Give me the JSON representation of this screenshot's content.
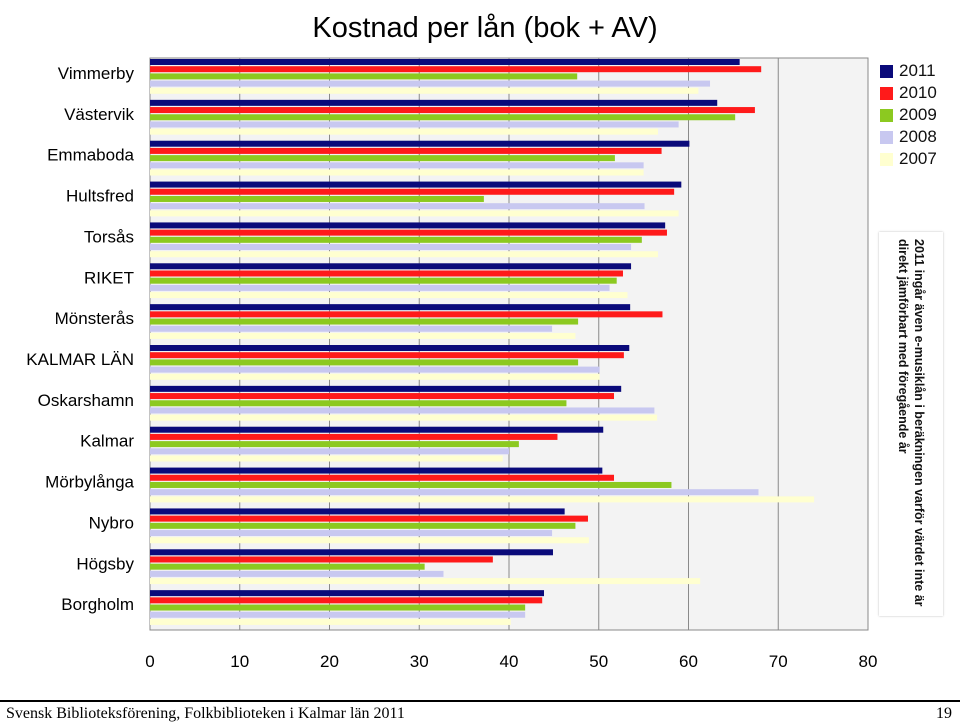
{
  "chart_data": {
    "type": "bar",
    "orientation": "horizontal",
    "title": "Kostnad per lån (bok + AV)",
    "categories": [
      "Vimmerby",
      "Västervik",
      "Emmaboda",
      "Hultsfred",
      "Torsås",
      "RIKET",
      "Mönsterås",
      "KALMAR LÄN",
      "Oskarshamn",
      "Kalmar",
      "Mörbylånga",
      "Nybro",
      "Högsby",
      "Borgholm"
    ],
    "series": [
      {
        "name": "2011",
        "color": "#0a0a7a",
        "values": [
          65.7,
          63.2,
          60.1,
          59.2,
          57.4,
          53.6,
          53.5,
          53.4,
          52.5,
          50.5,
          50.4,
          46.2,
          44.9,
          43.9
        ]
      },
      {
        "name": "2010",
        "color": "#ff1a1a",
        "values": [
          68.1,
          67.4,
          57.0,
          58.4,
          57.6,
          52.7,
          57.1,
          52.8,
          51.7,
          45.4,
          51.7,
          48.8,
          38.2,
          43.7
        ]
      },
      {
        "name": "2009",
        "color": "#8cc920",
        "values": [
          47.6,
          65.2,
          51.8,
          37.2,
          54.8,
          52.0,
          47.7,
          47.7,
          46.4,
          41.1,
          58.1,
          47.4,
          30.6,
          41.8
        ]
      },
      {
        "name": "2008",
        "color": "#c8c8f0",
        "values": [
          62.4,
          58.9,
          55.0,
          55.1,
          53.6,
          51.2,
          44.8,
          50.1,
          56.2,
          40.0,
          67.8,
          44.8,
          32.7,
          41.8
        ]
      },
      {
        "name": "2007",
        "color": "#ffffd0",
        "values": [
          61.1,
          56.6,
          55.0,
          58.9,
          56.6,
          53.2,
          47.4,
          50.1,
          56.5,
          39.3,
          74.0,
          48.9,
          61.3,
          40.2
        ]
      }
    ],
    "xlim": [
      0,
      80
    ],
    "xticks": [
      "0",
      "10",
      "20",
      "30",
      "40",
      "50",
      "60",
      "70",
      "80"
    ],
    "grid": true,
    "legend_position": "top-right"
  },
  "note": "2011 ingår även e-musiklån i beräkningen varför värdet inte är direkt jämförbart med föregående år",
  "footer": {
    "source": "Svensk Biblioteksförening, Folkbiblioteken i Kalmar län 2011",
    "page_number": "19"
  }
}
